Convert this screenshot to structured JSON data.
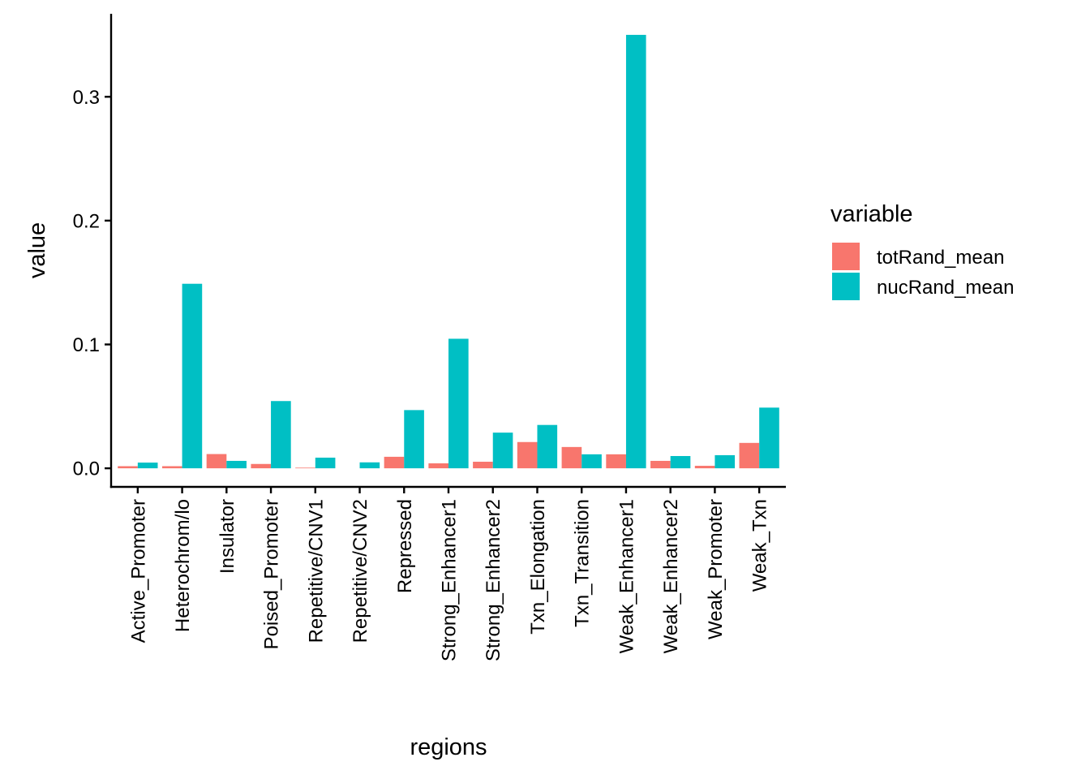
{
  "chart_data": {
    "type": "bar",
    "title": "",
    "xlabel": "regions",
    "ylabel": "value",
    "ylim": [
      -0.015,
      0.367
    ],
    "yticks": [
      0.0,
      0.1,
      0.2,
      0.3
    ],
    "ytick_labels": [
      "0.0",
      "0.1",
      "0.2",
      "0.3"
    ],
    "grid": false,
    "legend": {
      "title": "variable",
      "placement": "right"
    },
    "categories": [
      "Active_Promoter",
      "Heterochrom/lo",
      "Insulator",
      "Poised_Promoter",
      "Repetitive/CNV1",
      "Repetitive/CNV2",
      "Repressed",
      "Strong_Enhancer1",
      "Strong_Enhancer2",
      "Txn_Elongation",
      "Txn_Transition",
      "Weak_Enhancer1",
      "Weak_Enhancer2",
      "Weak_Promoter",
      "Weak_Txn"
    ],
    "series": [
      {
        "name": "totRand_mean",
        "color": "#F8766D",
        "values": [
          0.0017,
          0.0017,
          0.0115,
          0.0035,
          0.0005,
          0.0,
          0.0093,
          0.004,
          0.0053,
          0.0212,
          0.0172,
          0.0113,
          0.006,
          0.002,
          0.0205
        ]
      },
      {
        "name": "nucRand_mean",
        "color": "#00BFC4",
        "values": [
          0.0046,
          0.149,
          0.006,
          0.0543,
          0.0086,
          0.0048,
          0.047,
          0.1046,
          0.0288,
          0.035,
          0.0113,
          0.35,
          0.0099,
          0.0106,
          0.049
        ]
      }
    ]
  }
}
